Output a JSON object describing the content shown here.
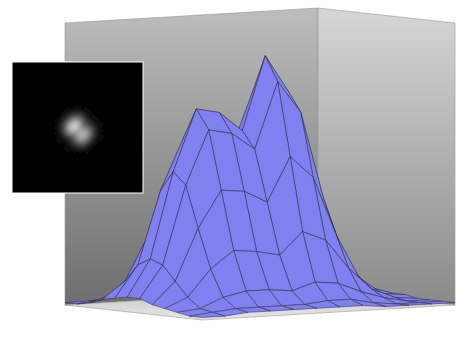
{
  "chart_data": {
    "type": "surface",
    "color": "#8080f0",
    "zlim": [
      0,
      110
    ],
    "z": [
      [
        1,
        1,
        1,
        1,
        2,
        2,
        2,
        2,
        1,
        1,
        1,
        1
      ],
      [
        1,
        1,
        2,
        3,
        4,
        5,
        5,
        3,
        2,
        1,
        1,
        1
      ],
      [
        1,
        2,
        4,
        9,
        14,
        16,
        15,
        10,
        6,
        3,
        1,
        1
      ],
      [
        2,
        4,
        10,
        24,
        39,
        46,
        42,
        28,
        15,
        6,
        2,
        1
      ],
      [
        3,
        6,
        18,
        44,
        73,
        86,
        78,
        52,
        27,
        10,
        4,
        2
      ],
      [
        3,
        7,
        21,
        51,
        86,
        101,
        91,
        61,
        31,
        11,
        4,
        2
      ],
      [
        2,
        5,
        15,
        36,
        61,
        71,
        64,
        43,
        22,
        8,
        3,
        2
      ],
      [
        3,
        6,
        17,
        40,
        67,
        79,
        71,
        48,
        24,
        9,
        3,
        2
      ],
      [
        3,
        6,
        17,
        41,
        69,
        81,
        73,
        49,
        25,
        9,
        3,
        2
      ],
      [
        2,
        4,
        12,
        29,
        48,
        56,
        51,
        34,
        18,
        7,
        3,
        2
      ],
      [
        1,
        2,
        5,
        11,
        18,
        21,
        19,
        13,
        7,
        3,
        2,
        1
      ],
      [
        1,
        1,
        2,
        4,
        5,
        6,
        6,
        4,
        3,
        2,
        1,
        1
      ]
    ]
  }
}
